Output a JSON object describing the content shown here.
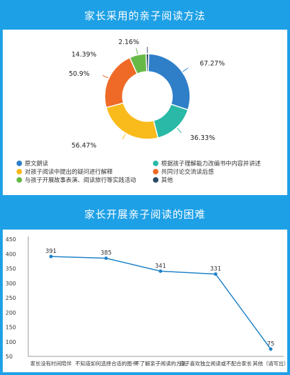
{
  "sections": [
    {
      "title": "家长采用的亲子阅读方法"
    },
    {
      "title": "家长开展亲子阅读的困难"
    }
  ],
  "chart_data": [
    {
      "type": "pie",
      "donut": true,
      "title": "家长采用的亲子阅读方法",
      "slices": [
        {
          "label": "原文朗读",
          "value_label": "67.27%",
          "value": 67.27,
          "color": "#2e7fc8"
        },
        {
          "label": "根据孩子理解能力改编书中内容并讲述",
          "value_label": "36.33%",
          "value": 36.33,
          "color": "#29b9a6"
        },
        {
          "label": "对孩子阅读中提出的疑问进行解释",
          "value_label": "56.47%",
          "value": 56.47,
          "color": "#f9ba1c"
        },
        {
          "label": "共同讨论交流读后感",
          "value_label": "50.9%",
          "value": 50.9,
          "color": "#ef6a27"
        },
        {
          "label": "与孩子开展故事表演、阅读旅行等实践活动",
          "value_label": "14.39%",
          "value": 14.39,
          "color": "#67b947"
        },
        {
          "label": "其他",
          "value_label": "2.16%",
          "value": 2.16,
          "color": "#2c4a66"
        }
      ],
      "legend_position": "bottom"
    },
    {
      "type": "line",
      "title": "家长开展亲子阅读的困难",
      "categories": [
        "家长没有时间陪伴",
        "不知道如何选择合适的图书",
        "不了解亲子阅读的方法",
        "孩子喜欢独立阅读或不配合家长",
        "其他（请写出）"
      ],
      "series": [
        {
          "values": [
            391,
            385,
            341,
            331,
            75
          ]
        }
      ],
      "data_labels": [
        "391",
        "385",
        "341",
        "331",
        "75"
      ],
      "yticks": [
        "450",
        "400",
        "350",
        "300",
        "250",
        "200",
        "150",
        "100",
        "50"
      ],
      "ylim": [
        50,
        450
      ],
      "grid": false,
      "color": "#1e82c8"
    }
  ]
}
